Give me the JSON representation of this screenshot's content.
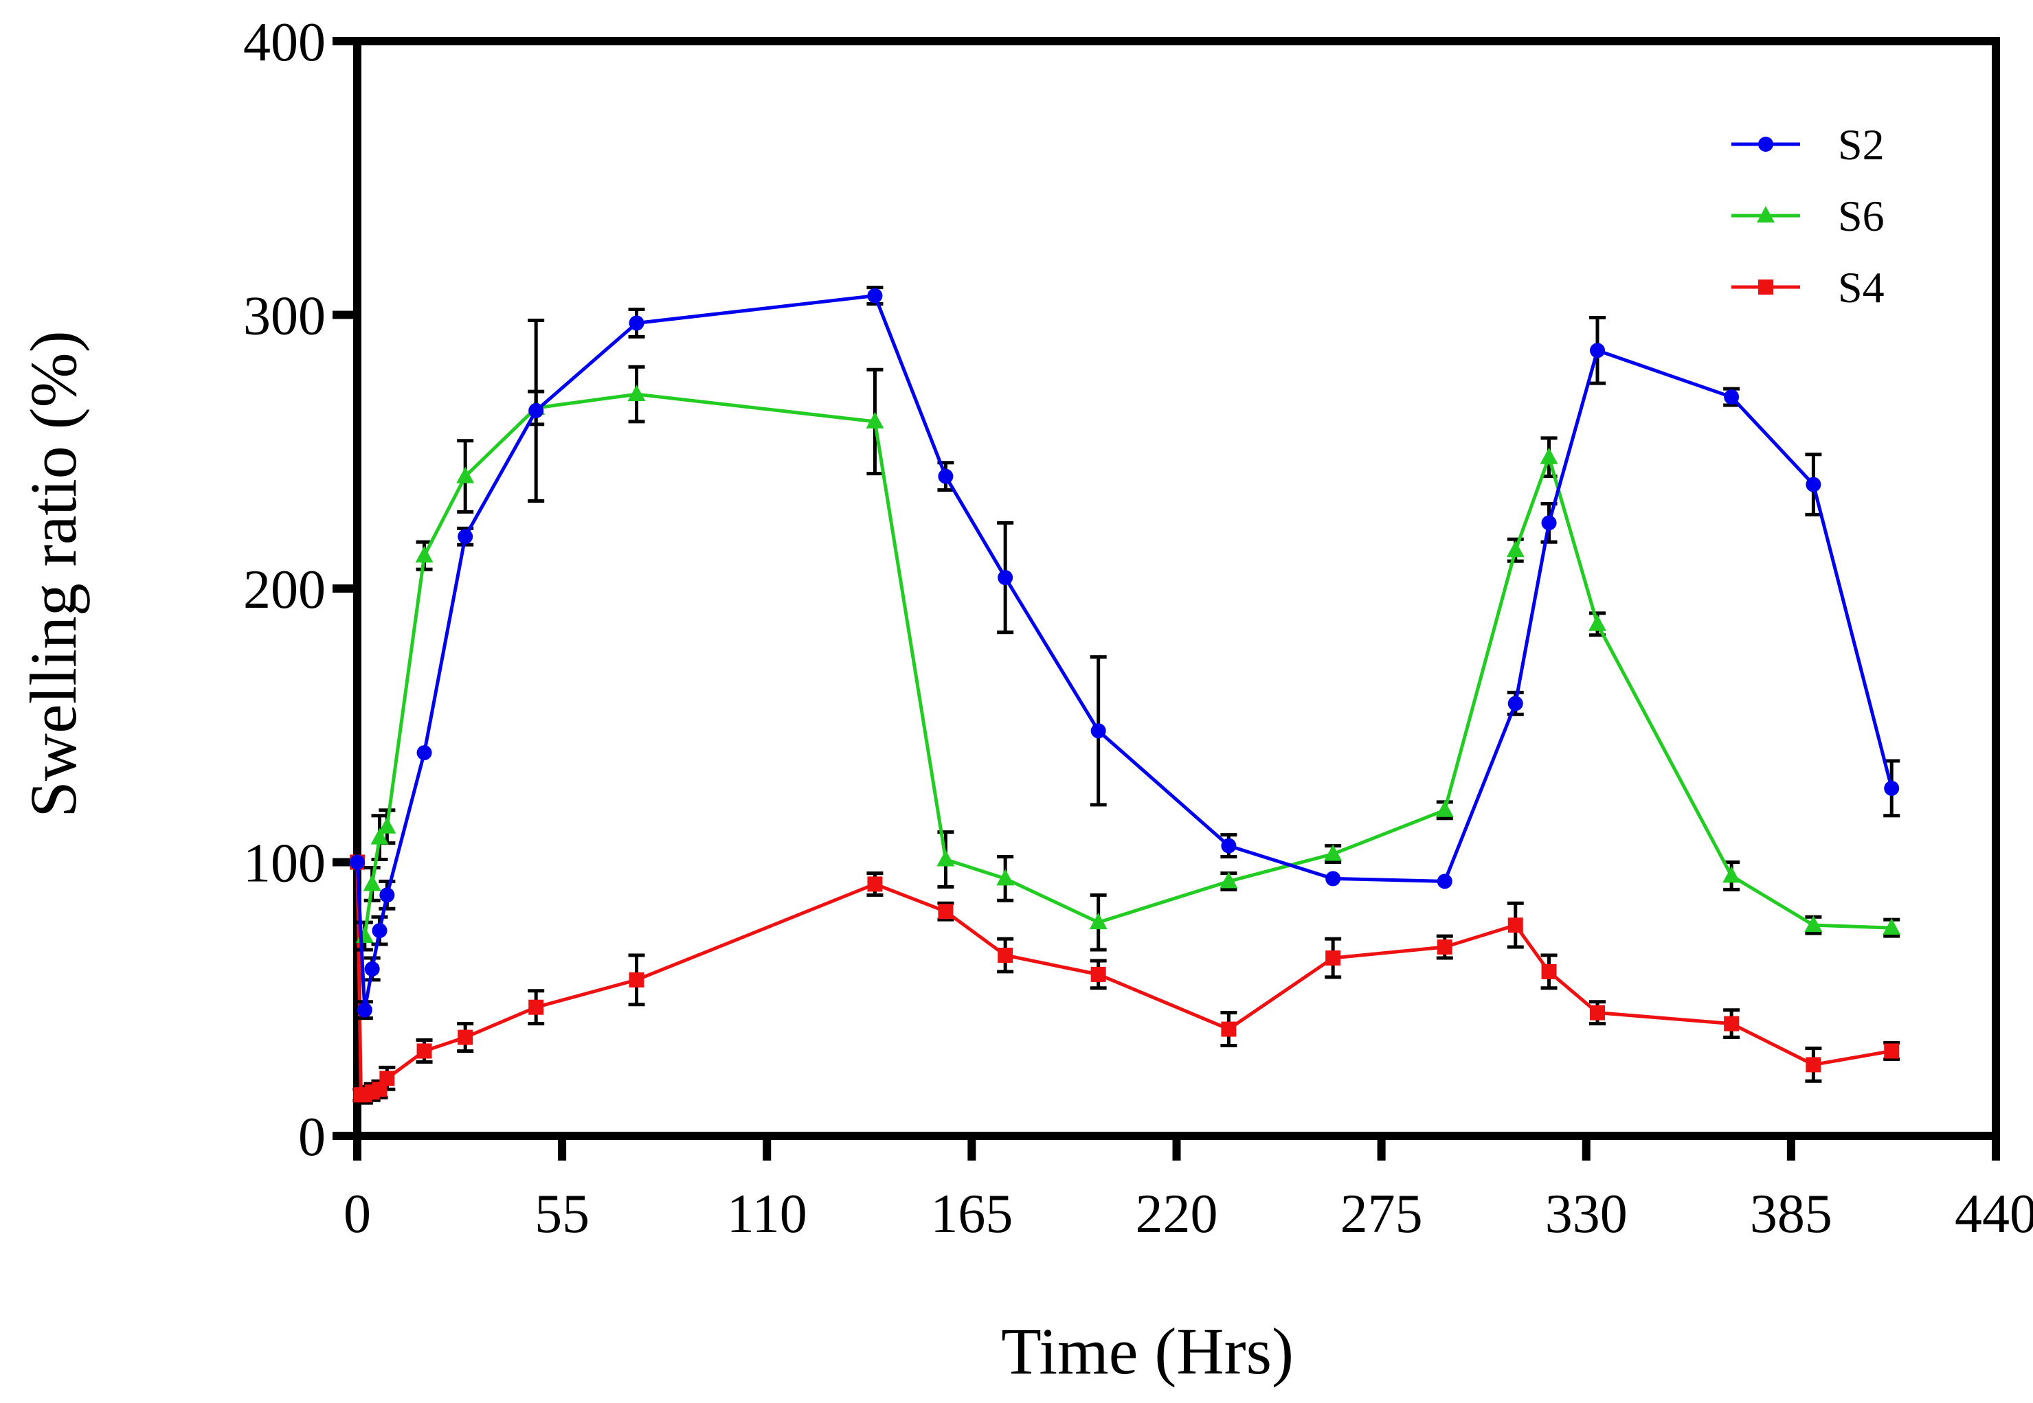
{
  "chart_data": {
    "type": "line",
    "title": "",
    "xlabel": "Time (Hrs)",
    "ylabel": "Swelling ratio (%)",
    "xlim": [
      0,
      440
    ],
    "ylim": [
      0,
      400
    ],
    "xticks": [
      0,
      55,
      110,
      165,
      220,
      275,
      330,
      385,
      440
    ],
    "yticks": [
      0,
      100,
      200,
      300,
      400
    ],
    "grid": false,
    "legend_position": "top-right",
    "series": [
      {
        "name": "S2",
        "color": "#0000ee",
        "marker": "circle",
        "x": [
          0,
          2,
          4,
          6,
          8,
          18,
          29,
          48,
          75,
          139,
          158,
          174,
          199,
          234,
          262,
          292,
          311,
          320,
          333,
          369,
          391,
          412
        ],
        "y": [
          100,
          46,
          61,
          75,
          88,
          140,
          219,
          265,
          297,
          307,
          241,
          204,
          148,
          106,
          94,
          93,
          158,
          224,
          287,
          270,
          238,
          127
        ],
        "err": [
          0,
          3,
          4,
          5,
          5,
          0,
          3,
          33,
          5,
          3,
          5,
          20,
          27,
          4,
          0,
          0,
          4,
          7,
          12,
          3,
          11,
          10
        ]
      },
      {
        "name": "S6",
        "color": "#22cc22",
        "marker": "triangle",
        "x": [
          2,
          4,
          6,
          8,
          18,
          29,
          48,
          75,
          139,
          158,
          174,
          199,
          234,
          262,
          292,
          311,
          320,
          333,
          369,
          391,
          412
        ],
        "y": [
          73,
          92,
          109,
          113,
          212,
          241,
          266,
          271,
          261,
          101,
          94,
          78,
          93,
          103,
          119,
          214,
          248,
          187,
          95,
          77,
          76
        ],
        "err": [
          5,
          6,
          8,
          6,
          5,
          13,
          6,
          10,
          19,
          10,
          8,
          10,
          3,
          3,
          3,
          4,
          7,
          4,
          5,
          3,
          3
        ]
      },
      {
        "name": "S4",
        "color": "#ee1111",
        "marker": "square",
        "x": [
          0,
          1,
          2,
          4,
          6,
          8,
          18,
          29,
          48,
          75,
          139,
          158,
          174,
          199,
          234,
          262,
          292,
          311,
          320,
          333,
          369,
          391,
          412
        ],
        "y": [
          100,
          15,
          15,
          16,
          17,
          21,
          31,
          36,
          47,
          57,
          92,
          82,
          66,
          59,
          39,
          65,
          69,
          77,
          60,
          45,
          41,
          26,
          31
        ],
        "err": [
          0,
          2,
          3,
          3,
          3,
          4,
          4,
          5,
          6,
          9,
          4,
          3,
          6,
          5,
          6,
          7,
          4,
          8,
          6,
          4,
          5,
          6,
          3
        ]
      }
    ]
  }
}
